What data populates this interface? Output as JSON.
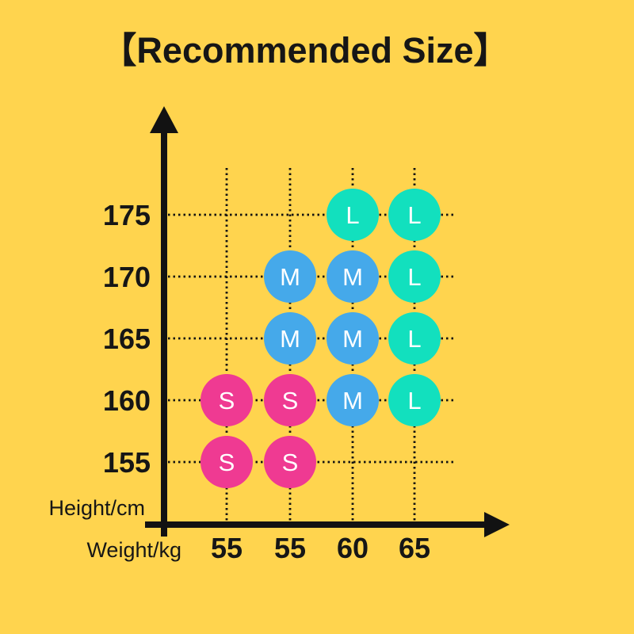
{
  "chart_data": {
    "type": "scatter",
    "title": "【Recommended Size】",
    "xlabel": "Weight/kg",
    "ylabel": "Height/cm",
    "x_tick_labels": [
      "55",
      "55",
      "60",
      "65"
    ],
    "y_tick_labels": [
      "175",
      "170",
      "165",
      "160",
      "155"
    ],
    "grid": true,
    "legend": "none",
    "colors": {
      "background": "#FFD44E",
      "axis": "#121212",
      "text": "#161616",
      "point_text": "#FFFFFF",
      "size_S": "#EF3A92",
      "size_M": "#45A9EA",
      "size_L": "#12E0BE"
    },
    "points": [
      {
        "x_index": 2,
        "y_index": 0,
        "x_label": "60",
        "y_label": "175",
        "size": "L"
      },
      {
        "x_index": 3,
        "y_index": 0,
        "x_label": "65",
        "y_label": "175",
        "size": "L"
      },
      {
        "x_index": 1,
        "y_index": 1,
        "x_label": "55",
        "y_label": "170",
        "size": "M"
      },
      {
        "x_index": 2,
        "y_index": 1,
        "x_label": "60",
        "y_label": "170",
        "size": "M"
      },
      {
        "x_index": 3,
        "y_index": 1,
        "x_label": "65",
        "y_label": "170",
        "size": "L"
      },
      {
        "x_index": 1,
        "y_index": 2,
        "x_label": "55",
        "y_label": "165",
        "size": "M"
      },
      {
        "x_index": 2,
        "y_index": 2,
        "x_label": "60",
        "y_label": "165",
        "size": "M"
      },
      {
        "x_index": 3,
        "y_index": 2,
        "x_label": "65",
        "y_label": "165",
        "size": "L"
      },
      {
        "x_index": 0,
        "y_index": 3,
        "x_label": "55",
        "y_label": "160",
        "size": "S"
      },
      {
        "x_index": 1,
        "y_index": 3,
        "x_label": "55",
        "y_label": "160",
        "size": "S"
      },
      {
        "x_index": 2,
        "y_index": 3,
        "x_label": "60",
        "y_label": "160",
        "size": "M"
      },
      {
        "x_index": 3,
        "y_index": 3,
        "x_label": "65",
        "y_label": "160",
        "size": "L"
      },
      {
        "x_index": 0,
        "y_index": 4,
        "x_label": "55",
        "y_label": "155",
        "size": "S"
      },
      {
        "x_index": 1,
        "y_index": 4,
        "x_label": "55",
        "y_label": "155",
        "size": "S"
      }
    ]
  }
}
